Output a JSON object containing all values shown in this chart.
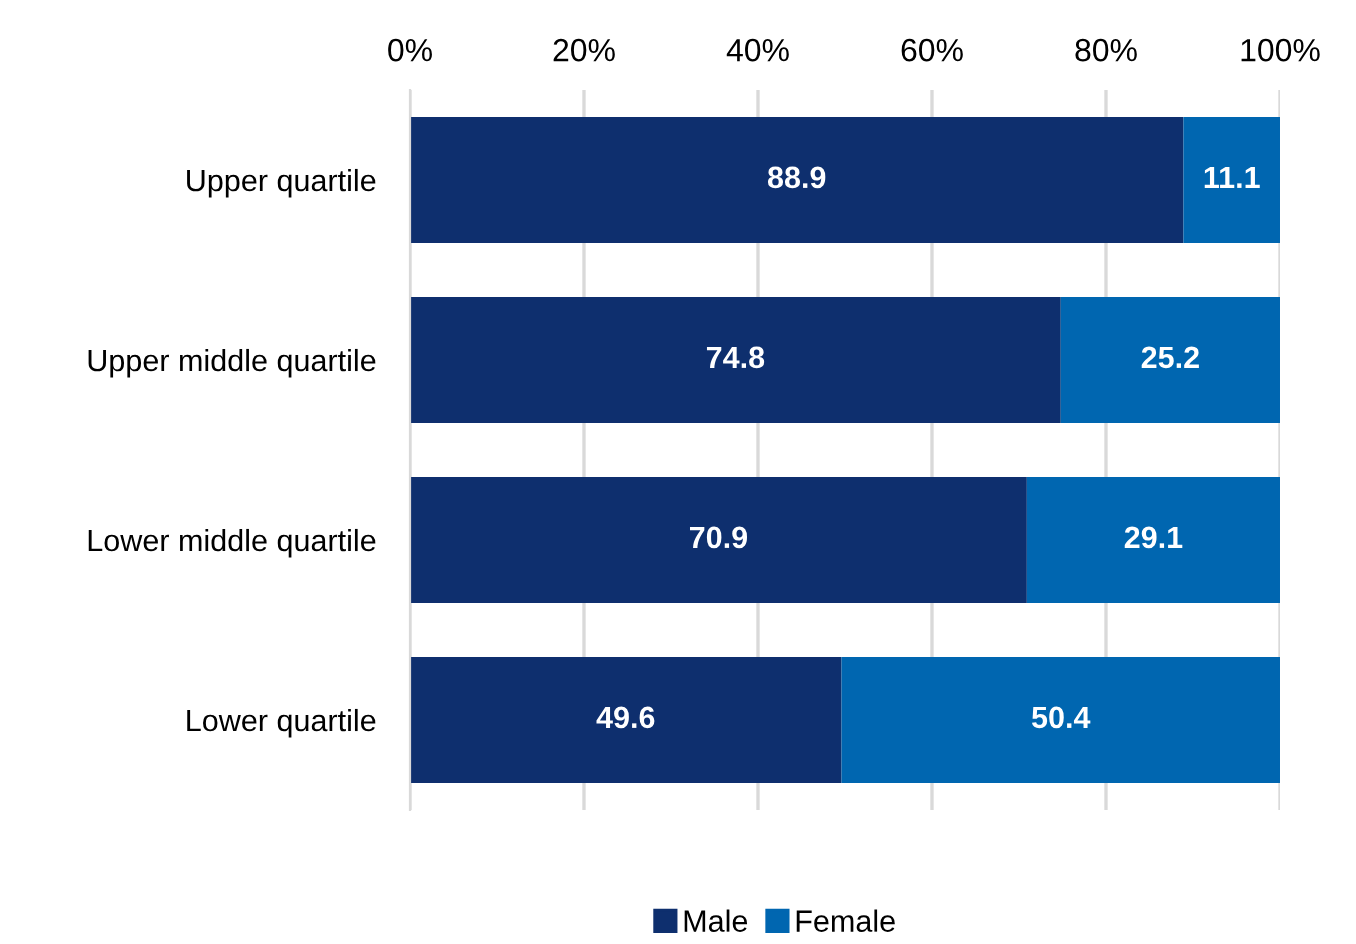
{
  "chart_data": {
    "type": "bar",
    "orientation": "horizontal",
    "stacked": true,
    "data_labels": true,
    "grid": "x",
    "legend": "bottom",
    "categories": [
      "Upper quartile",
      "Upper middle quartile",
      "Lower middle quartile",
      "Lower quartile"
    ],
    "series": [
      {
        "name": "Male",
        "color": "#0e2f6e",
        "values": [
          88.9,
          74.8,
          70.9,
          49.6
        ]
      },
      {
        "name": "Female",
        "color": "#0066b0",
        "values": [
          11.1,
          25.2,
          29.1,
          50.4
        ]
      }
    ],
    "xlim": [
      0,
      100
    ],
    "xticks": [
      {
        "value": 0,
        "label": "0%"
      },
      {
        "value": 20,
        "label": "20%"
      },
      {
        "value": 40,
        "label": "40%"
      },
      {
        "value": 60,
        "label": "60%"
      },
      {
        "value": 80,
        "label": "80%"
      },
      {
        "value": 100,
        "label": "100%"
      }
    ]
  }
}
